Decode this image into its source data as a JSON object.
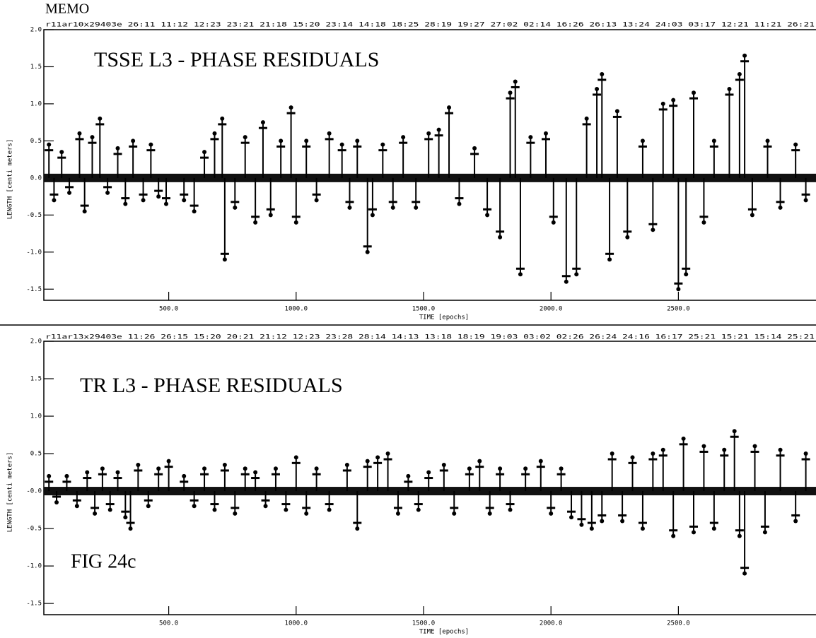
{
  "memo": "MEMO",
  "figure_label": "FIG 24c",
  "chart_data": [
    {
      "type": "stem",
      "title": "TSSE L3 - PHASE RESIDUALS",
      "header": "r11ar10x29403e 26:11 11:12 12:23 23:21 21:18 15:20 23:14 14:18 18:25 28:19 19:27 27:02 02:14 16:26 26:13 13:24 24:03 03:17 12:21 11:21 26:21",
      "x_label": "TIME [epochs]",
      "y_label": "LENGTH [centi meters]",
      "xlim": [
        10,
        3040
      ],
      "ylim": [
        -1.65,
        2.0
      ],
      "xticks": [
        {
          "value": 500,
          "label": "500.0"
        },
        {
          "value": 1000,
          "label": "1000.0"
        },
        {
          "value": 1500,
          "label": "1500.0"
        },
        {
          "value": 2000,
          "label": "2000.0"
        },
        {
          "value": 2500,
          "label": "2500.0"
        }
      ],
      "yticks": [
        {
          "value": 2,
          "label": "2.0"
        },
        {
          "value": 1.5,
          "label": "1.5"
        },
        {
          "value": 1,
          "label": "1.0"
        },
        {
          "value": 0.5,
          "label": "0.5"
        },
        {
          "value": 0,
          "label": "0.0"
        },
        {
          "value": -0.5,
          "label": "-0.5"
        },
        {
          "value": -1,
          "label": "-1.0"
        },
        {
          "value": -1.5,
          "label": "-1.5"
        }
      ],
      "color": "#000000",
      "x": [
        30,
        50,
        80,
        110,
        150,
        170,
        200,
        230,
        260,
        300,
        330,
        360,
        400,
        430,
        460,
        490,
        560,
        600,
        640,
        680,
        710,
        720,
        760,
        800,
        840,
        870,
        900,
        940,
        980,
        1000,
        1040,
        1080,
        1130,
        1180,
        1210,
        1240,
        1280,
        1300,
        1340,
        1380,
        1420,
        1470,
        1520,
        1560,
        1600,
        1640,
        1700,
        1750,
        1800,
        1840,
        1860,
        1880,
        1920,
        1980,
        2010,
        2060,
        2100,
        2140,
        2180,
        2200,
        2230,
        2260,
        2300,
        2360,
        2400,
        2440,
        2480,
        2500,
        2530,
        2560,
        2600,
        2640,
        2700,
        2740,
        2760,
        2790,
        2850,
        2900,
        2960,
        3000
      ],
      "values": [
        0.45,
        -0.3,
        0.35,
        -0.2,
        0.6,
        -0.45,
        0.55,
        0.8,
        -0.2,
        0.4,
        -0.35,
        0.5,
        -0.3,
        0.45,
        -0.25,
        -0.35,
        -0.3,
        -0.45,
        0.35,
        0.6,
        0.8,
        -1.1,
        -0.4,
        0.55,
        -0.6,
        0.75,
        -0.5,
        0.5,
        0.95,
        -0.6,
        0.5,
        -0.3,
        0.6,
        0.45,
        -0.4,
        0.5,
        -1.0,
        -0.5,
        0.45,
        -0.4,
        0.55,
        -0.4,
        0.6,
        0.65,
        0.95,
        -0.35,
        0.4,
        -0.5,
        -0.8,
        1.15,
        1.3,
        -1.3,
        0.55,
        0.6,
        -0.6,
        -1.4,
        -1.3,
        0.8,
        1.2,
        1.4,
        -1.1,
        0.9,
        -0.8,
        0.5,
        -0.7,
        1.0,
        1.05,
        -1.5,
        -1.3,
        1.15,
        -0.6,
        0.5,
        1.2,
        1.4,
        1.65,
        -0.5,
        0.5,
        -0.4,
        0.45,
        -0.3
      ]
    },
    {
      "type": "stem",
      "title": "TR L3 - PHASE RESIDUALS",
      "header": "r11ar13x29403e 11:26 26:15 15:20 20:21 21:12 12:23 23:28 28:14 14:13 13:18 18:19 19:03 03:02 02:26 26:24 24:16 16:17 25:21 15:21 15:14 25:21",
      "x_label": "TIME [epochs]",
      "y_label": "LENGTH [centi meters]",
      "xlim": [
        10,
        3040
      ],
      "ylim": [
        -1.65,
        2.0
      ],
      "xticks": [
        {
          "value": 500,
          "label": "500.0"
        },
        {
          "value": 1000,
          "label": "1000.0"
        },
        {
          "value": 1500,
          "label": "1500.0"
        },
        {
          "value": 2000,
          "label": "2000.0"
        },
        {
          "value": 2500,
          "label": "2500.0"
        }
      ],
      "yticks": [
        {
          "value": 2,
          "label": "2.0"
        },
        {
          "value": 1.5,
          "label": "1.5"
        },
        {
          "value": 1,
          "label": "1.0"
        },
        {
          "value": 0.5,
          "label": "0.5"
        },
        {
          "value": 0,
          "label": "-0.0"
        },
        {
          "value": -0.5,
          "label": "-0.5"
        },
        {
          "value": -1,
          "label": "-1.0"
        },
        {
          "value": -1.5,
          "label": "-1.5"
        }
      ],
      "color": "#000000",
      "x": [
        30,
        60,
        100,
        140,
        180,
        210,
        240,
        270,
        300,
        330,
        350,
        380,
        420,
        460,
        500,
        560,
        600,
        640,
        680,
        720,
        760,
        800,
        840,
        880,
        920,
        960,
        1000,
        1040,
        1080,
        1130,
        1200,
        1240,
        1280,
        1320,
        1360,
        1400,
        1440,
        1480,
        1520,
        1580,
        1620,
        1680,
        1720,
        1760,
        1800,
        1840,
        1900,
        1960,
        2000,
        2040,
        2080,
        2120,
        2160,
        2200,
        2240,
        2280,
        2320,
        2360,
        2400,
        2440,
        2480,
        2520,
        2560,
        2600,
        2640,
        2680,
        2720,
        2740,
        2760,
        2800,
        2840,
        2900,
        2960,
        3000
      ],
      "values": [
        0.2,
        -0.15,
        0.2,
        -0.2,
        0.25,
        -0.3,
        0.3,
        -0.25,
        0.25,
        -0.35,
        -0.5,
        0.35,
        -0.2,
        0.3,
        0.4,
        0.2,
        -0.2,
        0.3,
        -0.25,
        0.35,
        -0.3,
        0.3,
        0.25,
        -0.2,
        0.3,
        -0.25,
        0.45,
        -0.3,
        0.3,
        -0.25,
        0.35,
        -0.5,
        0.4,
        0.45,
        0.5,
        -0.3,
        0.2,
        -0.25,
        0.25,
        0.35,
        -0.3,
        0.3,
        0.4,
        -0.3,
        0.3,
        -0.25,
        0.3,
        0.4,
        -0.3,
        0.3,
        -0.35,
        -0.45,
        -0.5,
        -0.4,
        0.5,
        -0.4,
        0.45,
        -0.5,
        0.5,
        0.55,
        -0.6,
        0.7,
        -0.55,
        0.6,
        -0.5,
        0.55,
        0.8,
        -0.6,
        -1.1,
        0.6,
        -0.55,
        0.55,
        -0.4,
        0.5
      ]
    }
  ]
}
